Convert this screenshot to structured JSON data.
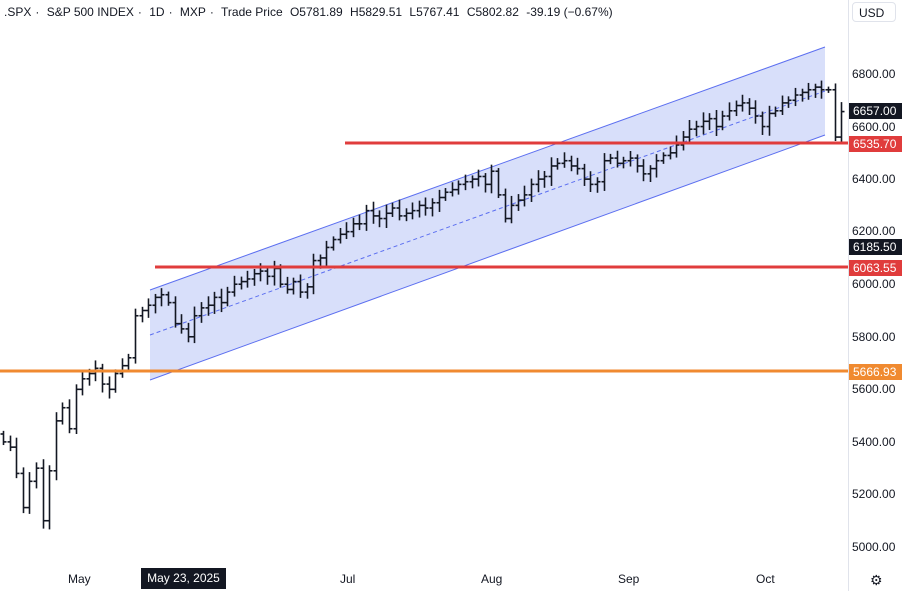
{
  "header": {
    "symbol": ".SPX",
    "name": "S&P 500 INDEX",
    "interval": "1D",
    "exchange": "MXP",
    "price_type": "Trade Price",
    "open": "O5781.89",
    "high": "H5829.51",
    "low": "L5767.41",
    "close": "C5802.82",
    "change": "-39.19 (−0.67%)",
    "sep": "·"
  },
  "currency": "USD",
  "tags": {
    "last": "6657.00",
    "crosshair": "6185.50",
    "resistance1": "6535.70",
    "support1": "6063.55",
    "support2": "5666.93",
    "date": "May 23, 2025"
  },
  "colors": {
    "red": "#e03c3c",
    "orange": "#f08a30",
    "channel": "#5c6ff0",
    "channel_fill": "#d4dbfa"
  },
  "icons": {
    "settings": "gear-icon"
  },
  "chart_data": {
    "type": "ohlc",
    "title": ".SPX S&P 500 INDEX 1D",
    "ylim": [
      4930,
      6930
    ],
    "yticks": [
      "6800.00",
      "6600.00",
      "6400.00",
      "6200.00",
      "6000.00",
      "5800.00",
      "5600.00",
      "5400.00",
      "5200.00",
      "5000.00"
    ],
    "xticks": [
      "May",
      "Jul",
      "Aug",
      "Sep",
      "Oct"
    ],
    "horizontal_levels": [
      6535.7,
      6063.55,
      5666.93
    ],
    "closes": [
      5400,
      5380,
      5280,
      5150,
      5250,
      5300,
      5100,
      5290,
      5480,
      5530,
      5450,
      5600,
      5640,
      5660,
      5680,
      5620,
      5600,
      5660,
      5690,
      5720,
      5880,
      5900,
      5920,
      5950,
      5960,
      5930,
      5850,
      5830,
      5800,
      5880,
      5910,
      5920,
      5950,
      5930,
      5970,
      6000,
      6010,
      6020,
      6040,
      6050,
      6030,
      6060,
      6000,
      5980,
      6010,
      5970,
      5990,
      6090,
      6100,
      6140,
      6170,
      6190,
      6200,
      6230,
      6230,
      6280,
      6260,
      6250,
      6270,
      6290,
      6260,
      6270,
      6280,
      6300,
      6290,
      6310,
      6330,
      6350,
      6360,
      6380,
      6390,
      6400,
      6410,
      6380,
      6430,
      6340,
      6250,
      6300,
      6320,
      6340,
      6380,
      6400,
      6410,
      6450,
      6460,
      6470,
      6450,
      6440,
      6400,
      6380,
      6390,
      6470,
      6480,
      6460,
      6470,
      6480,
      6450,
      6420,
      6440,
      6470,
      6490,
      6500,
      6530,
      6560,
      6590,
      6600,
      6620,
      6630,
      6600,
      6640,
      6660,
      6680,
      6690,
      6670,
      6640,
      6600,
      6650,
      6660,
      6690,
      6700,
      6720,
      6730,
      6740,
      6750,
      6740,
      6740,
      6560,
      6657
    ]
  }
}
